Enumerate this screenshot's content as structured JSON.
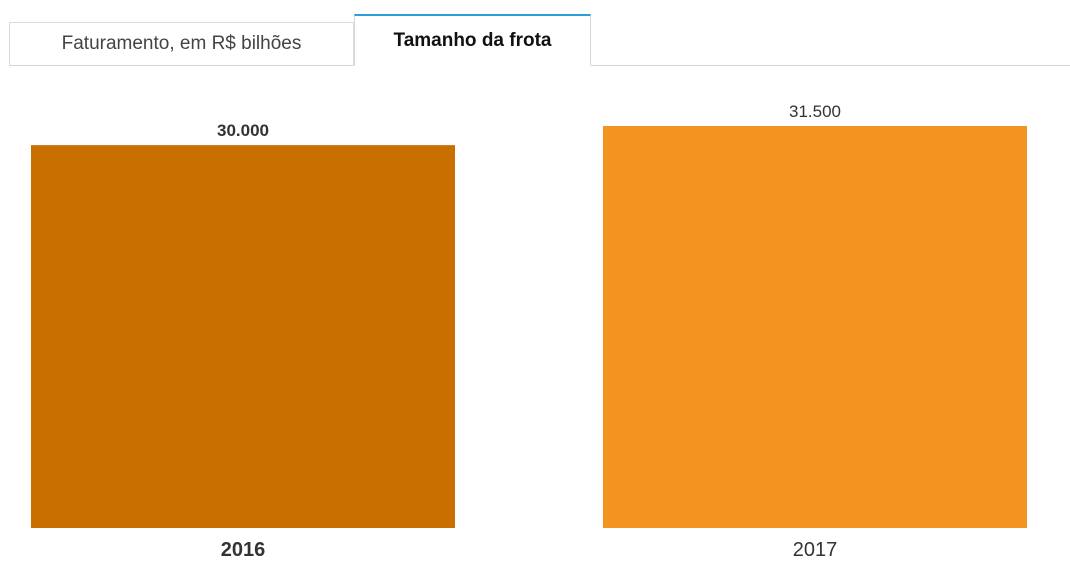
{
  "tabs": [
    {
      "label": "Faturamento, em R$ bilhões",
      "active": false
    },
    {
      "label": "Tamanho da frota",
      "active": true
    }
  ],
  "colors": {
    "bar_2016": "#c96f00",
    "bar_2017": "#f39320",
    "tab_accent": "#2a9fd8"
  },
  "chart_data": {
    "type": "bar",
    "title": "",
    "xlabel": "",
    "ylabel": "",
    "categories": [
      "2016",
      "2017"
    ],
    "values": [
      30000,
      31500
    ],
    "value_labels": [
      "30.000",
      "31.500"
    ],
    "ylim": [
      0,
      31500
    ],
    "highlighted_category": "2016",
    "grid": false
  }
}
